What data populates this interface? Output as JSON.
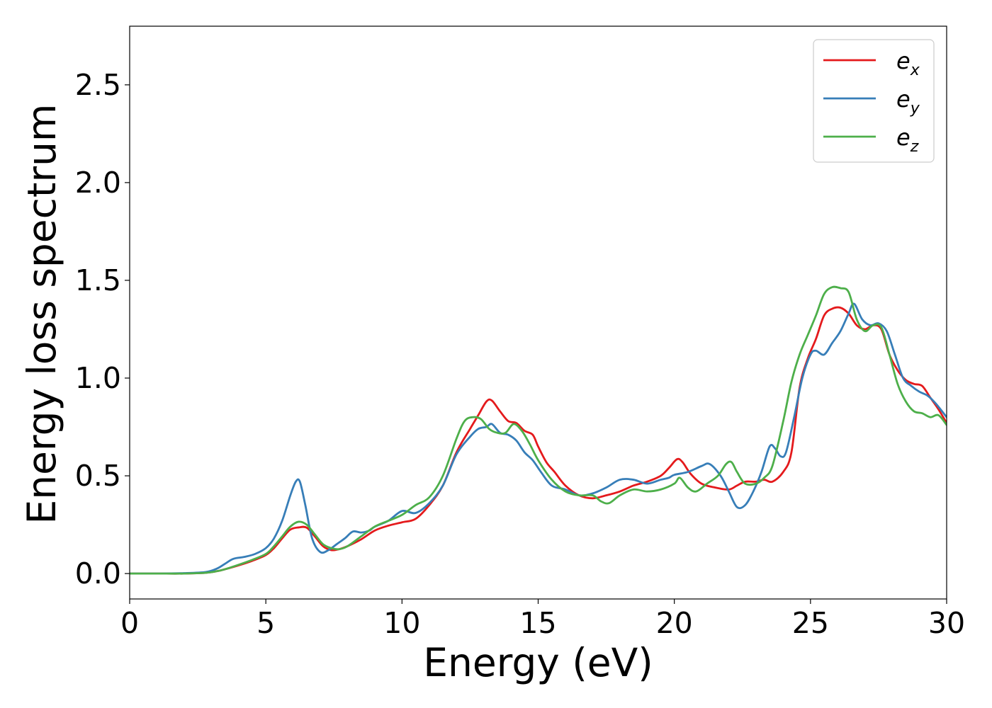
{
  "chart_data": {
    "type": "line",
    "title": "",
    "xlabel": "Energy (eV)",
    "ylabel": "Energy loss spectrum",
    "xlim": [
      0,
      30
    ],
    "ylim": [
      -0.13,
      2.8
    ],
    "xticks": [
      "0",
      "5",
      "10",
      "15",
      "20",
      "25",
      "30"
    ],
    "yticks": [
      "0.0",
      "0.5",
      "1.0",
      "1.5",
      "2.0",
      "2.5"
    ],
    "grid": false,
    "legend_position": "upper-right",
    "series": [
      {
        "name": "e_x",
        "label_base": "e",
        "label_sub": "x",
        "color": "#e41a1c",
        "x": [
          0,
          1,
          2,
          2.8,
          3.2,
          3.5,
          4,
          4.5,
          5,
          5.3,
          5.6,
          5.9,
          6.2,
          6.5,
          6.8,
          7.1,
          7.4,
          7.7,
          8,
          8.5,
          9,
          9.5,
          10,
          10.5,
          11,
          11.5,
          12,
          12.5,
          12.8,
          13.1,
          13.3,
          13.6,
          13.9,
          14.2,
          14.5,
          14.8,
          15,
          15.3,
          15.6,
          16,
          16.5,
          17,
          17.5,
          18,
          18.5,
          19,
          19.5,
          19.8,
          20.1,
          20.3,
          20.6,
          21,
          21.5,
          22,
          22.3,
          22.6,
          23,
          23.3,
          23.6,
          24,
          24.3,
          24.6,
          24.9,
          25.2,
          25.5,
          25.8,
          26.1,
          26.4,
          26.7,
          27,
          27.3,
          27.6,
          27.9,
          28.2,
          28.5,
          28.8,
          29.1,
          29.4,
          29.7,
          30
        ],
        "y": [
          0,
          0,
          0,
          0.004,
          0.012,
          0.022,
          0.042,
          0.065,
          0.095,
          0.13,
          0.18,
          0.225,
          0.236,
          0.235,
          0.19,
          0.14,
          0.12,
          0.125,
          0.14,
          0.175,
          0.22,
          0.245,
          0.262,
          0.28,
          0.35,
          0.45,
          0.62,
          0.74,
          0.81,
          0.88,
          0.885,
          0.83,
          0.78,
          0.77,
          0.73,
          0.71,
          0.65,
          0.57,
          0.52,
          0.45,
          0.4,
          0.385,
          0.4,
          0.42,
          0.45,
          0.47,
          0.5,
          0.54,
          0.585,
          0.57,
          0.51,
          0.46,
          0.44,
          0.43,
          0.45,
          0.47,
          0.47,
          0.48,
          0.47,
          0.52,
          0.62,
          0.95,
          1.1,
          1.2,
          1.32,
          1.355,
          1.36,
          1.33,
          1.27,
          1.25,
          1.27,
          1.25,
          1.12,
          1.04,
          0.99,
          0.97,
          0.96,
          0.9,
          0.84,
          0.77
        ]
      },
      {
        "name": "e_y",
        "label_base": "e",
        "label_sub": "y",
        "color": "#377eb8",
        "x": [
          0,
          1,
          2,
          2.8,
          3.2,
          3.5,
          3.8,
          4.2,
          4.6,
          5,
          5.3,
          5.6,
          5.9,
          6.1,
          6.25,
          6.45,
          6.7,
          7,
          7.3,
          7.6,
          7.9,
          8.2,
          8.5,
          8.8,
          9,
          9.5,
          10,
          10.5,
          11,
          11.5,
          12,
          12.5,
          12.8,
          13.1,
          13.3,
          13.6,
          13.9,
          14.2,
          14.5,
          14.8,
          15.1,
          15.5,
          16,
          16.5,
          17,
          17.5,
          18,
          18.5,
          19,
          19.5,
          19.8,
          20,
          20.5,
          21,
          21.3,
          21.7,
          22,
          22.3,
          22.6,
          22.9,
          23.2,
          23.5,
          23.7,
          23.9,
          24.1,
          24.4,
          24.7,
          25,
          25.2,
          25.5,
          25.8,
          26.1,
          26.4,
          26.6,
          26.9,
          27.2,
          27.5,
          27.8,
          28.1,
          28.4,
          28.7,
          29,
          29.3,
          29.6,
          30
        ],
        "y": [
          0,
          0,
          0.002,
          0.008,
          0.025,
          0.05,
          0.075,
          0.085,
          0.1,
          0.13,
          0.18,
          0.27,
          0.4,
          0.47,
          0.47,
          0.35,
          0.18,
          0.11,
          0.12,
          0.15,
          0.18,
          0.215,
          0.21,
          0.22,
          0.24,
          0.27,
          0.32,
          0.31,
          0.36,
          0.45,
          0.61,
          0.7,
          0.74,
          0.75,
          0.765,
          0.72,
          0.71,
          0.68,
          0.62,
          0.58,
          0.52,
          0.45,
          0.43,
          0.4,
          0.41,
          0.44,
          0.48,
          0.48,
          0.46,
          0.48,
          0.49,
          0.505,
          0.52,
          0.55,
          0.56,
          0.5,
          0.42,
          0.34,
          0.35,
          0.42,
          0.52,
          0.65,
          0.64,
          0.6,
          0.62,
          0.8,
          1.0,
          1.12,
          1.14,
          1.12,
          1.18,
          1.24,
          1.33,
          1.38,
          1.3,
          1.27,
          1.28,
          1.24,
          1.12,
          1.0,
          0.96,
          0.93,
          0.91,
          0.87,
          0.8
        ]
      },
      {
        "name": "e_z",
        "label_base": "e",
        "label_sub": "z",
        "color": "#4daf4a",
        "x": [
          0,
          1,
          2,
          2.8,
          3.2,
          3.5,
          4,
          4.5,
          5,
          5.3,
          5.6,
          5.9,
          6.2,
          6.5,
          6.8,
          7.1,
          7.4,
          7.7,
          8,
          8.5,
          9,
          9.5,
          10,
          10.5,
          11,
          11.5,
          12,
          12.3,
          12.6,
          12.9,
          13.2,
          13.5,
          13.8,
          14.1,
          14.4,
          14.7,
          15,
          15.5,
          16,
          16.5,
          17,
          17.3,
          17.6,
          18,
          18.5,
          19,
          19.5,
          20,
          20.2,
          20.5,
          20.8,
          21.2,
          21.6,
          21.9,
          22.1,
          22.3,
          22.6,
          23,
          23.3,
          23.6,
          24,
          24.3,
          24.6,
          24.9,
          25.2,
          25.5,
          25.8,
          26.1,
          26.4,
          26.7,
          27,
          27.3,
          27.6,
          27.9,
          28.2,
          28.5,
          28.8,
          29.1,
          29.4,
          29.7,
          30
        ],
        "y": [
          0,
          0,
          0,
          0.004,
          0.012,
          0.022,
          0.045,
          0.07,
          0.1,
          0.14,
          0.19,
          0.24,
          0.265,
          0.25,
          0.2,
          0.15,
          0.13,
          0.125,
          0.14,
          0.19,
          0.24,
          0.27,
          0.3,
          0.35,
          0.39,
          0.5,
          0.69,
          0.78,
          0.8,
          0.79,
          0.74,
          0.72,
          0.72,
          0.765,
          0.73,
          0.66,
          0.58,
          0.48,
          0.42,
          0.4,
          0.4,
          0.37,
          0.36,
          0.4,
          0.43,
          0.42,
          0.43,
          0.46,
          0.49,
          0.44,
          0.42,
          0.46,
          0.5,
          0.56,
          0.57,
          0.52,
          0.46,
          0.46,
          0.49,
          0.55,
          0.78,
          0.98,
          1.12,
          1.22,
          1.32,
          1.43,
          1.465,
          1.46,
          1.44,
          1.3,
          1.24,
          1.27,
          1.26,
          1.12,
          0.97,
          0.88,
          0.83,
          0.82,
          0.8,
          0.81,
          0.76
        ]
      }
    ]
  }
}
